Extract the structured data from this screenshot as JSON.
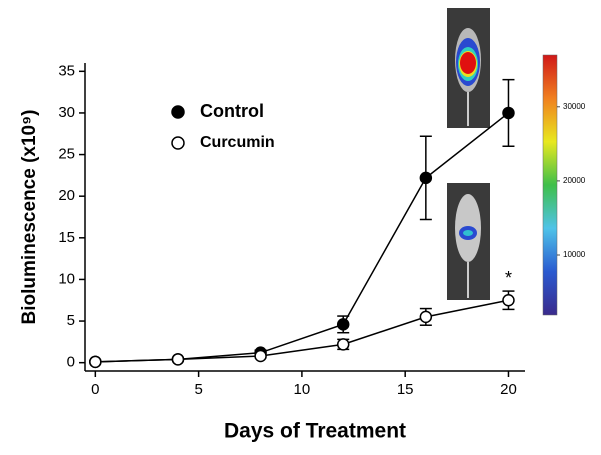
{
  "chart_data": {
    "type": "line",
    "xlabel": "Days of Treatment",
    "ylabel": "Bioluminescence (x10⁹)",
    "x": [
      0,
      4,
      8,
      12,
      16,
      20
    ],
    "series": [
      {
        "name": "Control",
        "color": "#000000",
        "filled": true,
        "values": [
          0.1,
          0.4,
          1.2,
          4.6,
          22.2,
          30
        ],
        "errors": [
          0.1,
          0.2,
          0.3,
          1.0,
          5.0,
          4.0
        ]
      },
      {
        "name": "Curcumin",
        "color": "#000000",
        "filled": false,
        "values": [
          0.1,
          0.4,
          0.8,
          2.2,
          5.5,
          7.5
        ],
        "errors": [
          0.1,
          0.1,
          0.2,
          0.6,
          1.0,
          1.1
        ]
      }
    ],
    "annotations": [
      {
        "text": "*",
        "x": 20,
        "y": 10
      }
    ],
    "xlim": [
      -0.5,
      20.8
    ],
    "xticks": [
      0,
      5,
      10,
      15,
      20
    ],
    "ylim": [
      -1,
      36
    ],
    "yticks": [
      0,
      5,
      10,
      15,
      20,
      25,
      30,
      35
    ],
    "colorbar": {
      "lim": [
        1900,
        37000
      ],
      "ticks": [
        10000,
        20000,
        30000
      ],
      "colors": [
        "#3a2a8c",
        "#2a5ad0",
        "#4fc3e8",
        "#3fbf4a",
        "#e8e820",
        "#f08020",
        "#d01818"
      ]
    }
  }
}
